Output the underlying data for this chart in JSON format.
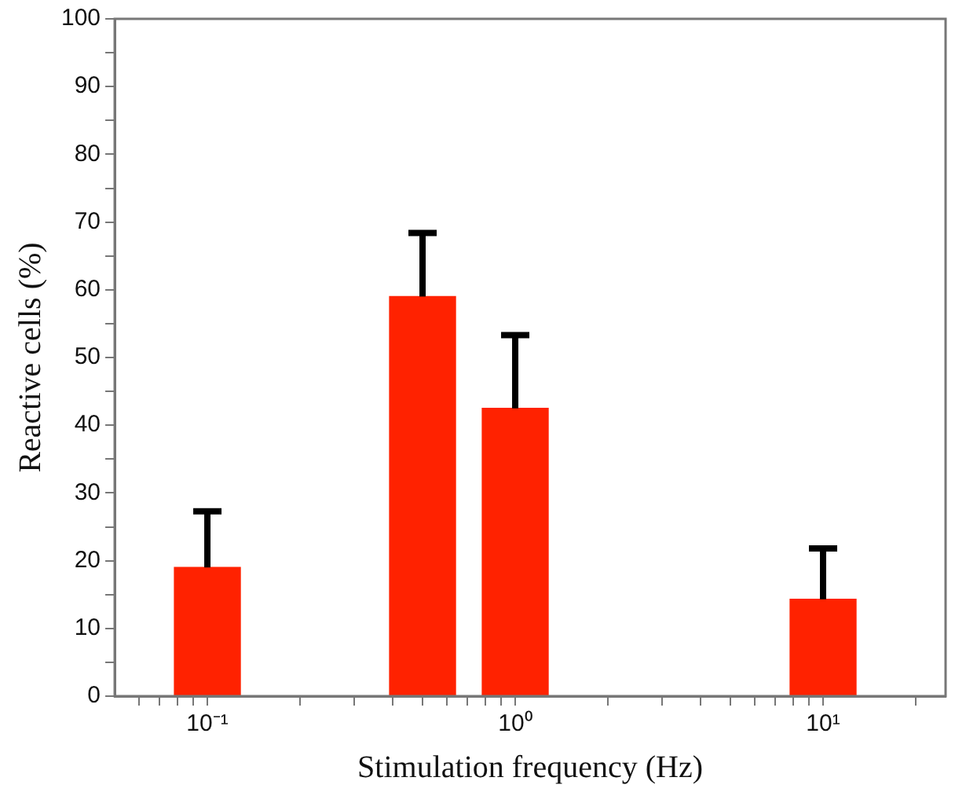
{
  "chart_data": {
    "type": "bar",
    "xlabel": "Stimulation frequency (Hz)",
    "ylabel": "Reactive cells (%)",
    "x": [
      0.1,
      0.5,
      1,
      10
    ],
    "values": [
      19,
      59,
      42.5,
      14.3
    ],
    "errors": [
      [
        19,
        27.3
      ],
      [
        59,
        68.4
      ],
      [
        42.5,
        53.3
      ],
      [
        14.3,
        21.8
      ]
    ],
    "color": "#ff2200",
    "log": "x",
    "grid": false,
    "legend": false,
    "xlim": [
      0.05,
      25
    ],
    "xticks": [
      {
        "value": 0.06,
        "label": null
      },
      {
        "value": 0.07,
        "label": null
      },
      {
        "value": 0.08,
        "label": null
      },
      {
        "value": 0.09,
        "label": null
      },
      {
        "value": 0.1,
        "label": "10⁻¹"
      },
      {
        "value": 0.2,
        "label": null
      },
      {
        "value": 0.3,
        "label": null
      },
      {
        "value": 0.4,
        "label": null
      },
      {
        "value": 0.5,
        "label": null
      },
      {
        "value": 0.6,
        "label": null
      },
      {
        "value": 0.7,
        "label": null
      },
      {
        "value": 0.8,
        "label": null
      },
      {
        "value": 0.9,
        "label": null
      },
      {
        "value": 1,
        "label": "10⁰"
      },
      {
        "value": 2,
        "label": null
      },
      {
        "value": 3,
        "label": null
      },
      {
        "value": 4,
        "label": null
      },
      {
        "value": 5,
        "label": null
      },
      {
        "value": 6,
        "label": null
      },
      {
        "value": 7,
        "label": null
      },
      {
        "value": 8,
        "label": null
      },
      {
        "value": 9,
        "label": null
      },
      {
        "value": 10,
        "label": "10¹"
      },
      {
        "value": 20,
        "label": null
      }
    ],
    "ylim": [
      0,
      100
    ],
    "yticks": [
      0,
      {
        "value": 5,
        "label": null
      },
      10,
      {
        "value": 15,
        "label": null
      },
      20,
      {
        "value": 25,
        "label": null
      },
      30,
      {
        "value": 35,
        "label": null
      },
      40,
      {
        "value": 45,
        "label": null
      },
      50,
      {
        "value": 55,
        "label": null
      },
      60,
      {
        "value": 65,
        "label": null
      },
      70,
      {
        "value": 75,
        "label": null
      },
      80,
      {
        "value": 85,
        "label": null
      },
      90,
      {
        "value": 95,
        "label": null
      },
      100
    ]
  }
}
